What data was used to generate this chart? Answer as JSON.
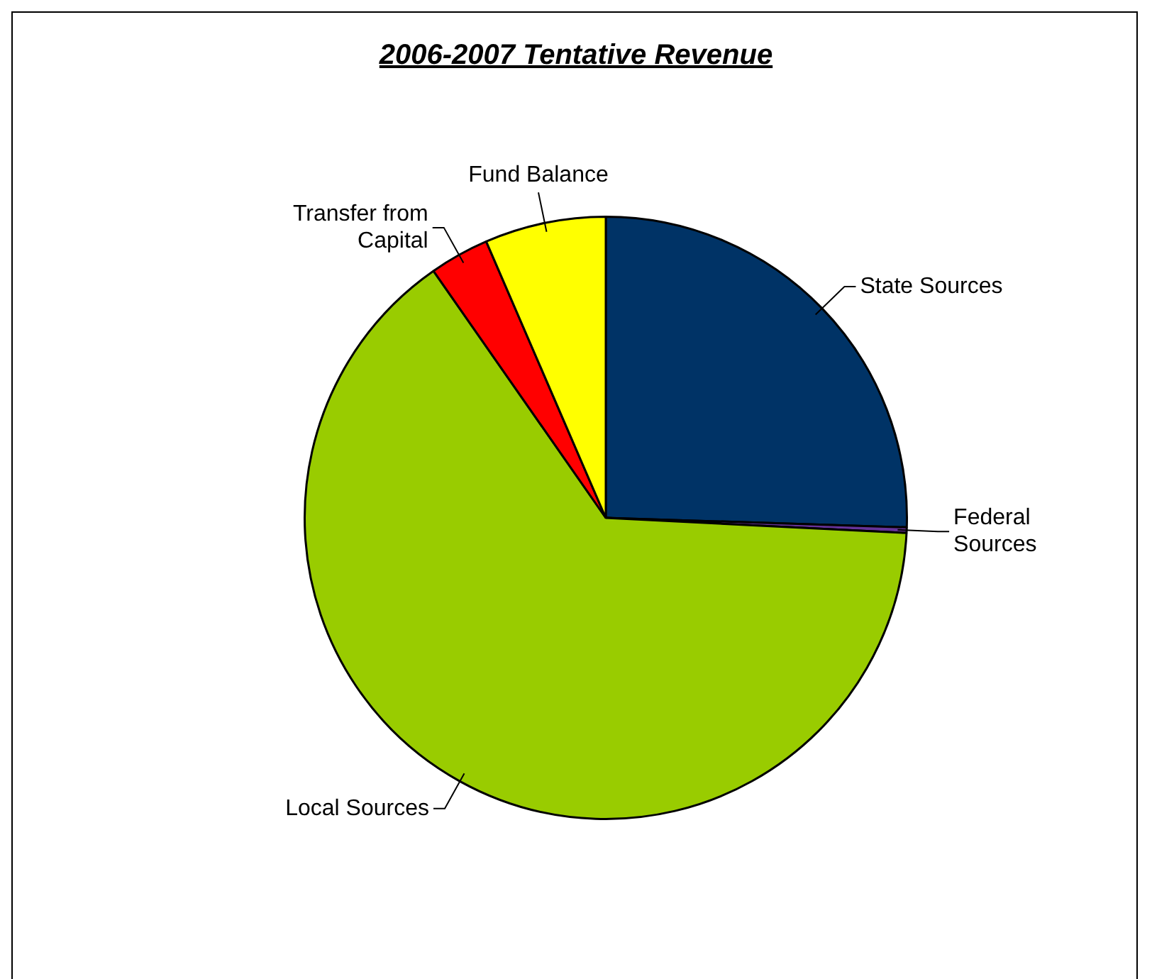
{
  "chart_data": {
    "type": "pie",
    "title": "2006-2007 Tentative Revenue",
    "categories": [
      "State Sources",
      "Federal Sources",
      "Local Sources",
      "Transfer from Capital",
      "Fund Balance"
    ],
    "values": [
      25.5,
      0.3,
      64.5,
      3.2,
      6.5
    ],
    "colors": [
      "#003366",
      "#663399",
      "#99cc00",
      "#ff0000",
      "#ffff00"
    ],
    "legend": false
  }
}
